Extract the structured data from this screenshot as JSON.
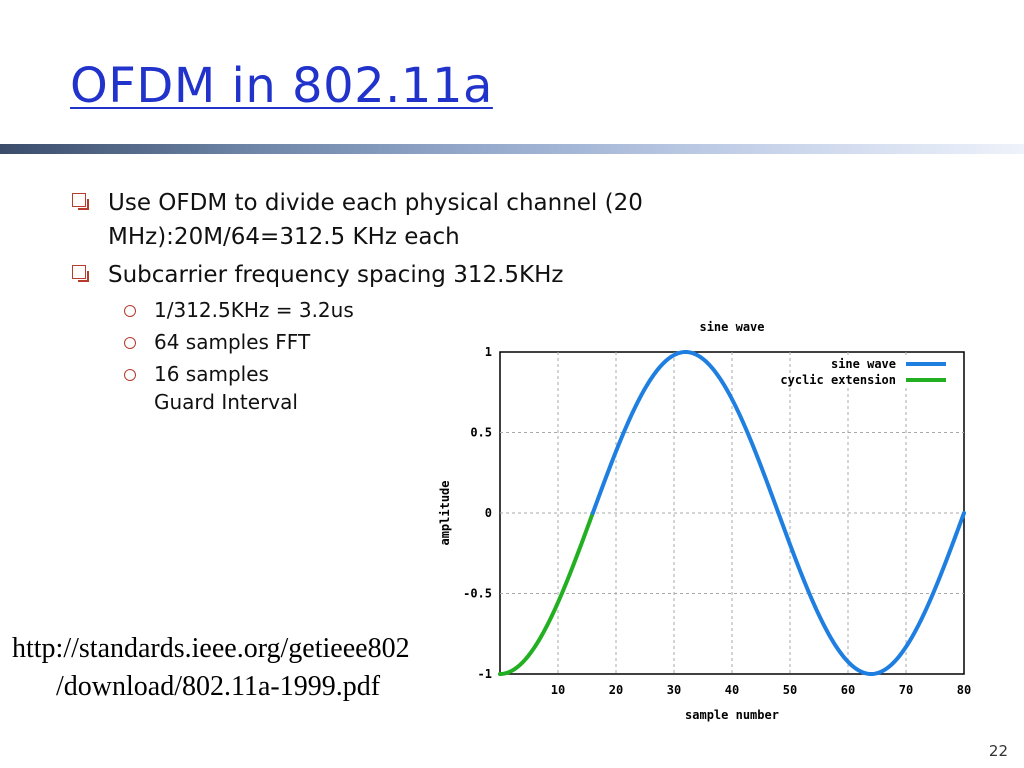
{
  "slide": {
    "title": "OFDM in 802.11a",
    "bullets": [
      {
        "text": "Use OFDM to divide each physical channel (20 MHz):20M/64=312.5 KHz each"
      },
      {
        "text": "Subcarrier frequency spacing 312.5KHz"
      }
    ],
    "sub_bullets": [
      {
        "text": "1/312.5KHz = 3.2us"
      },
      {
        "text": "64 samples FFT"
      },
      {
        "text": "16 samples"
      },
      {
        "text": "Guard Interval"
      }
    ],
    "link_line1": "http://standards.ieee.org/getieee802",
    "link_line2": "/download/802.11a-1999.pdf",
    "page_number": "22",
    "colors": {
      "title": "#2233cc",
      "bullet": "#b83a2a",
      "sine": "#1e7fe0",
      "cyclic": "#22b022"
    }
  },
  "chart_data": {
    "type": "line",
    "title": "sine wave",
    "xlabel": "sample number",
    "ylabel": "amplitude",
    "xlim": [
      0,
      80
    ],
    "ylim": [
      -1,
      1
    ],
    "x_ticks": [
      "10",
      "20",
      "30",
      "40",
      "50",
      "60",
      "70",
      "80"
    ],
    "y_ticks": [
      "1",
      "0.5",
      "0",
      "-0.5",
      "-1"
    ],
    "grid": true,
    "legend_position": "top-right",
    "series": [
      {
        "name": "sine wave",
        "function": "sin(2*pi*(x-16)/64)",
        "x_range": [
          16,
          80
        ]
      },
      {
        "name": "cyclic extension",
        "function": "sin(2*pi*(x-16)/64)",
        "x_range": [
          0,
          16
        ]
      }
    ]
  }
}
